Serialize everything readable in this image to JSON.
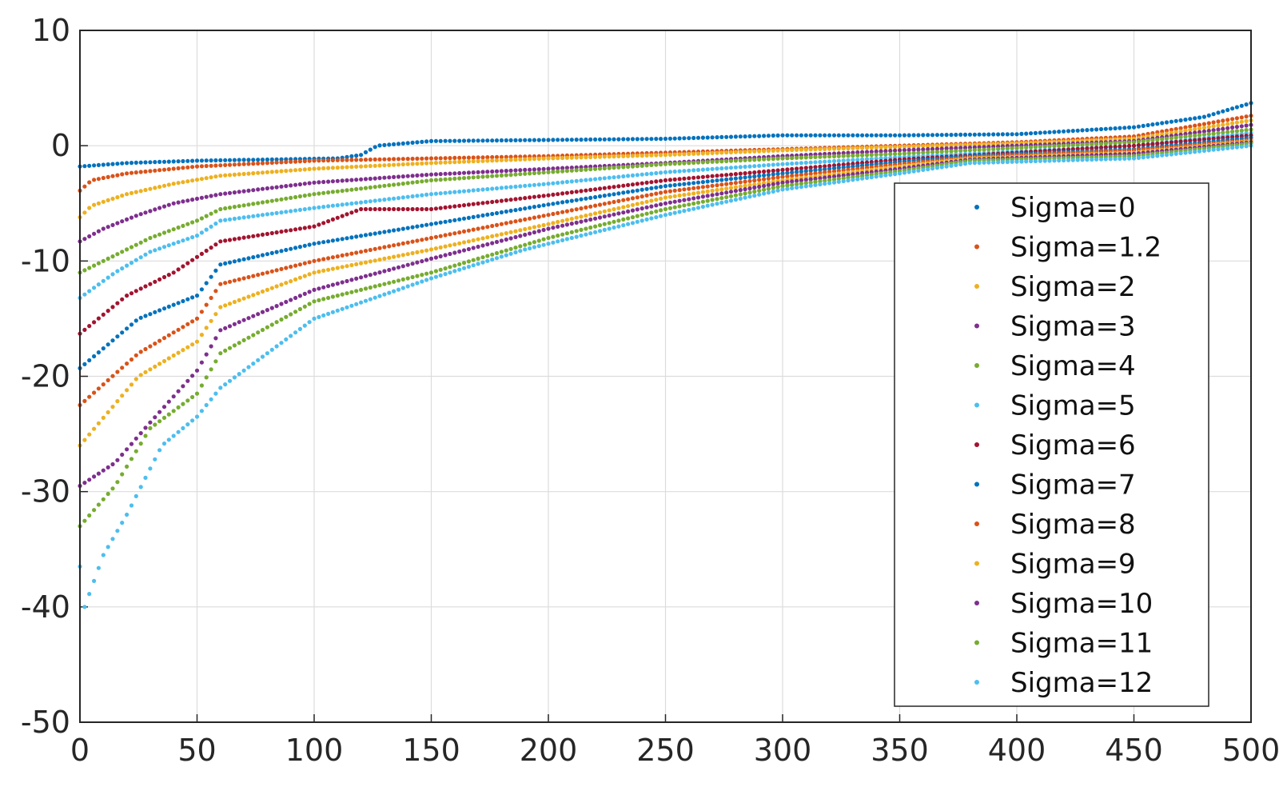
{
  "chart_data": {
    "type": "scatter",
    "title": "",
    "xlabel": "",
    "ylabel": "",
    "xlim": [
      0,
      500
    ],
    "ylim": [
      -50,
      10
    ],
    "xticks": [
      "0",
      "50",
      "100",
      "150",
      "200",
      "250",
      "300",
      "350",
      "400",
      "450",
      "500"
    ],
    "yticks": [
      "10",
      "0",
      "-10",
      "-20",
      "-30",
      "-40",
      "-50"
    ],
    "grid": true,
    "legend_position": "bottom-right",
    "series": [
      {
        "name": "Sigma=0",
        "color": "#0072BD",
        "points": [
          [
            0,
            -1.8
          ],
          [
            20,
            -1.5
          ],
          [
            50,
            -1.3
          ],
          [
            80,
            -1.2
          ],
          [
            110,
            -1.1
          ],
          [
            120,
            -0.8
          ],
          [
            127,
            0.0
          ],
          [
            150,
            0.4
          ],
          [
            200,
            0.5
          ],
          [
            250,
            0.6
          ],
          [
            300,
            0.9
          ],
          [
            350,
            0.9
          ],
          [
            400,
            1.0
          ],
          [
            450,
            1.6
          ],
          [
            480,
            2.5
          ],
          [
            500,
            3.7
          ]
        ]
      },
      {
        "name": "Sigma=1.2",
        "color": "#D95319",
        "points": [
          [
            0,
            -3.9
          ],
          [
            5,
            -3.0
          ],
          [
            20,
            -2.4
          ],
          [
            50,
            -1.8
          ],
          [
            100,
            -1.3
          ],
          [
            150,
            -1.1
          ],
          [
            200,
            -0.9
          ],
          [
            250,
            -0.6
          ],
          [
            300,
            -0.3
          ],
          [
            350,
            0.0
          ],
          [
            400,
            0.3
          ],
          [
            450,
            0.8
          ],
          [
            500,
            2.6
          ]
        ]
      },
      {
        "name": "Sigma=2",
        "color": "#EDB120",
        "points": [
          [
            0,
            -6.2
          ],
          [
            5,
            -5.2
          ],
          [
            20,
            -4.2
          ],
          [
            40,
            -3.3
          ],
          [
            60,
            -2.6
          ],
          [
            100,
            -2.0
          ],
          [
            150,
            -1.5
          ],
          [
            200,
            -1.1
          ],
          [
            250,
            -0.8
          ],
          [
            300,
            -0.4
          ],
          [
            350,
            -0.1
          ],
          [
            400,
            0.2
          ],
          [
            450,
            0.6
          ],
          [
            500,
            2.2
          ]
        ]
      },
      {
        "name": "Sigma=3",
        "color": "#7E2F8E",
        "points": [
          [
            0,
            -8.3
          ],
          [
            10,
            -7.2
          ],
          [
            25,
            -6.0
          ],
          [
            40,
            -5.0
          ],
          [
            60,
            -4.2
          ],
          [
            100,
            -3.2
          ],
          [
            150,
            -2.5
          ],
          [
            200,
            -2.0
          ],
          [
            250,
            -1.5
          ],
          [
            300,
            -0.9
          ],
          [
            350,
            -0.4
          ],
          [
            400,
            0.0
          ],
          [
            450,
            0.4
          ],
          [
            500,
            1.8
          ]
        ]
      },
      {
        "name": "Sigma=4",
        "color": "#77AC30",
        "points": [
          [
            0,
            -11.0
          ],
          [
            15,
            -9.5
          ],
          [
            30,
            -8.0
          ],
          [
            50,
            -6.5
          ],
          [
            60,
            -5.5
          ],
          [
            100,
            -4.2
          ],
          [
            150,
            -3.0
          ],
          [
            200,
            -2.3
          ],
          [
            250,
            -1.6
          ],
          [
            300,
            -1.1
          ],
          [
            350,
            -0.7
          ],
          [
            400,
            -0.2
          ],
          [
            450,
            0.3
          ],
          [
            500,
            1.4
          ]
        ]
      },
      {
        "name": "Sigma=5",
        "color": "#4DBEEE",
        "points": [
          [
            0,
            -13.2
          ],
          [
            15,
            -11.0
          ],
          [
            30,
            -9.2
          ],
          [
            50,
            -7.8
          ],
          [
            60,
            -6.5
          ],
          [
            100,
            -5.4
          ],
          [
            150,
            -4.2
          ],
          [
            200,
            -3.3
          ],
          [
            250,
            -2.3
          ],
          [
            300,
            -1.6
          ],
          [
            350,
            -1.0
          ],
          [
            400,
            -0.5
          ],
          [
            450,
            0.0
          ],
          [
            500,
            1.1
          ]
        ]
      },
      {
        "name": "Sigma=6",
        "color": "#A2142F",
        "points": [
          [
            0,
            -16.3
          ],
          [
            20,
            -13.0
          ],
          [
            40,
            -11.0
          ],
          [
            60,
            -8.3
          ],
          [
            100,
            -7.0
          ],
          [
            120,
            -5.5
          ],
          [
            150,
            -5.5
          ],
          [
            200,
            -4.3
          ],
          [
            250,
            -3.0
          ],
          [
            300,
            -2.1
          ],
          [
            350,
            -1.2
          ],
          [
            400,
            -0.6
          ],
          [
            450,
            0.0
          ],
          [
            500,
            0.9
          ]
        ]
      },
      {
        "name": "Sigma=7",
        "color": "#0072BD",
        "points": [
          [
            0,
            -19.3
          ],
          [
            25,
            -15.0
          ],
          [
            50,
            -13.0
          ],
          [
            60,
            -10.3
          ],
          [
            100,
            -8.5
          ],
          [
            150,
            -6.8
          ],
          [
            200,
            -5.1
          ],
          [
            250,
            -3.5
          ],
          [
            300,
            -2.4
          ],
          [
            350,
            -1.4
          ],
          [
            380,
            -0.9
          ],
          [
            450,
            -0.3
          ],
          [
            500,
            0.7
          ]
        ]
      },
      {
        "name": "Sigma=8",
        "color": "#D95319",
        "points": [
          [
            0,
            -22.5
          ],
          [
            25,
            -18.0
          ],
          [
            50,
            -15.0
          ],
          [
            60,
            -12.0
          ],
          [
            100,
            -10.0
          ],
          [
            150,
            -8.0
          ],
          [
            200,
            -6.0
          ],
          [
            250,
            -4.0
          ],
          [
            300,
            -2.7
          ],
          [
            350,
            -1.6
          ],
          [
            380,
            -1.0
          ],
          [
            450,
            -0.4
          ],
          [
            500,
            0.5
          ]
        ]
      },
      {
        "name": "Sigma=9",
        "color": "#EDB120",
        "points": [
          [
            0,
            -26.0
          ],
          [
            25,
            -20.0
          ],
          [
            50,
            -17.0
          ],
          [
            60,
            -14.0
          ],
          [
            100,
            -11.0
          ],
          [
            150,
            -9.0
          ],
          [
            200,
            -6.8
          ],
          [
            250,
            -4.5
          ],
          [
            300,
            -3.0
          ],
          [
            350,
            -1.8
          ],
          [
            380,
            -1.1
          ],
          [
            450,
            -0.6
          ],
          [
            500,
            0.4
          ]
        ]
      },
      {
        "name": "Sigma=10",
        "color": "#7E2F8E",
        "points": [
          [
            0,
            -29.5
          ],
          [
            15,
            -27.5
          ],
          [
            30,
            -24.0
          ],
          [
            50,
            -19.5
          ],
          [
            60,
            -16.0
          ],
          [
            100,
            -12.5
          ],
          [
            150,
            -9.8
          ],
          [
            200,
            -7.2
          ],
          [
            250,
            -5.0
          ],
          [
            300,
            -3.2
          ],
          [
            350,
            -2.0
          ],
          [
            380,
            -1.2
          ],
          [
            450,
            -0.7
          ],
          [
            500,
            0.3
          ]
        ]
      },
      {
        "name": "Sigma=11",
        "color": "#77AC30",
        "points": [
          [
            0,
            -33.0
          ],
          [
            15,
            -29.5
          ],
          [
            30,
            -24.5
          ],
          [
            50,
            -21.5
          ],
          [
            60,
            -18.0
          ],
          [
            100,
            -13.5
          ],
          [
            150,
            -11.0
          ],
          [
            200,
            -8.0
          ],
          [
            250,
            -5.5
          ],
          [
            300,
            -3.5
          ],
          [
            350,
            -2.2
          ],
          [
            380,
            -1.3
          ],
          [
            450,
            -0.9
          ],
          [
            500,
            0.2
          ]
        ]
      },
      {
        "name": "Sigma=12",
        "color": "#4DBEEE",
        "points": [
          [
            0,
            -36.5
          ],
          [
            2,
            -40.0
          ],
          [
            10,
            -35.5
          ],
          [
            20,
            -32.0
          ],
          [
            35,
            -26.0
          ],
          [
            50,
            -23.5
          ],
          [
            60,
            -21.0
          ],
          [
            100,
            -15.0
          ],
          [
            150,
            -11.5
          ],
          [
            190,
            -9.0
          ],
          [
            250,
            -6.0
          ],
          [
            300,
            -3.8
          ],
          [
            350,
            -2.4
          ],
          [
            380,
            -1.5
          ],
          [
            450,
            -1.1
          ],
          [
            500,
            0.0
          ]
        ]
      }
    ]
  }
}
